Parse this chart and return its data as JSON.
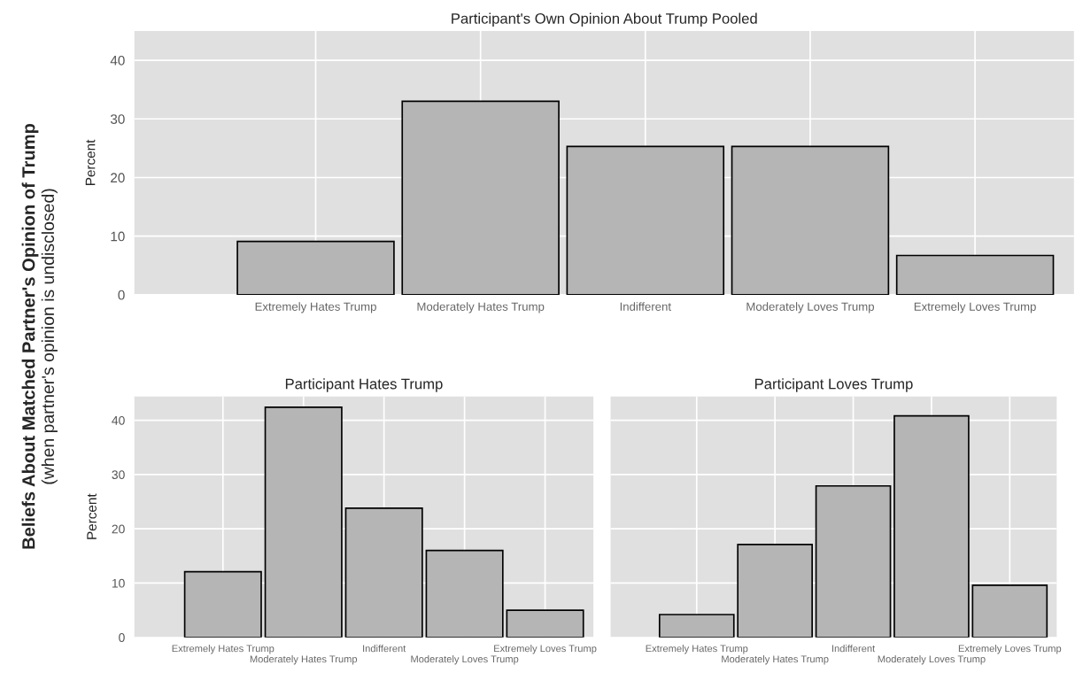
{
  "chart_data": [
    {
      "type": "bar",
      "title": "Participant's Own Opinion About Trump Pooled",
      "ylabel": "Percent",
      "categories": [
        "Extremely Hates Trump",
        "Moderately Hates Trump",
        "Indifferent",
        "Moderately Loves Trump",
        "Extremely Loves Trump"
      ],
      "values": [
        9.1,
        33,
        25.3,
        25.3,
        6.7
      ],
      "color": "#b5b5b5",
      "ylim": [
        0,
        45
      ],
      "yticks": [
        0,
        10,
        20,
        30,
        40
      ],
      "grid": true,
      "annotations": [
        "Beliefs About Matched Partner's Opinion of Trump",
        "(when partner's opinion is undisclosed)"
      ]
    },
    {
      "type": "bar",
      "title": "Participant Hates Trump",
      "ylabel": "Percent",
      "categories": [
        "Extremely Hates Trump",
        "Moderately Hates Trump",
        "Indifferent",
        "Moderately Loves Trump",
        "Extremely Loves Trump"
      ],
      "values": [
        12.1,
        42.4,
        23.8,
        16.0,
        5.0
      ],
      "color": "#b5b5b5",
      "ylim": [
        0,
        44.4
      ],
      "yticks": [
        0,
        10,
        20,
        30,
        40
      ],
      "grid": true
    },
    {
      "type": "bar",
      "title": "Participant Loves Trump",
      "categories": [
        "Extremely Hates Trump",
        "Moderately Hates Trump",
        "Indifferent",
        "Moderately Loves Trump",
        "Extremely Loves Trump"
      ],
      "values": [
        4.2,
        17.1,
        27.9,
        40.8,
        9.6
      ],
      "color": "#b5b5b5",
      "ylim": [
        0,
        44.4
      ],
      "yticks": [
        0,
        10,
        20,
        30,
        40
      ],
      "grid": true,
      "tick_labels": "x"
    }
  ]
}
